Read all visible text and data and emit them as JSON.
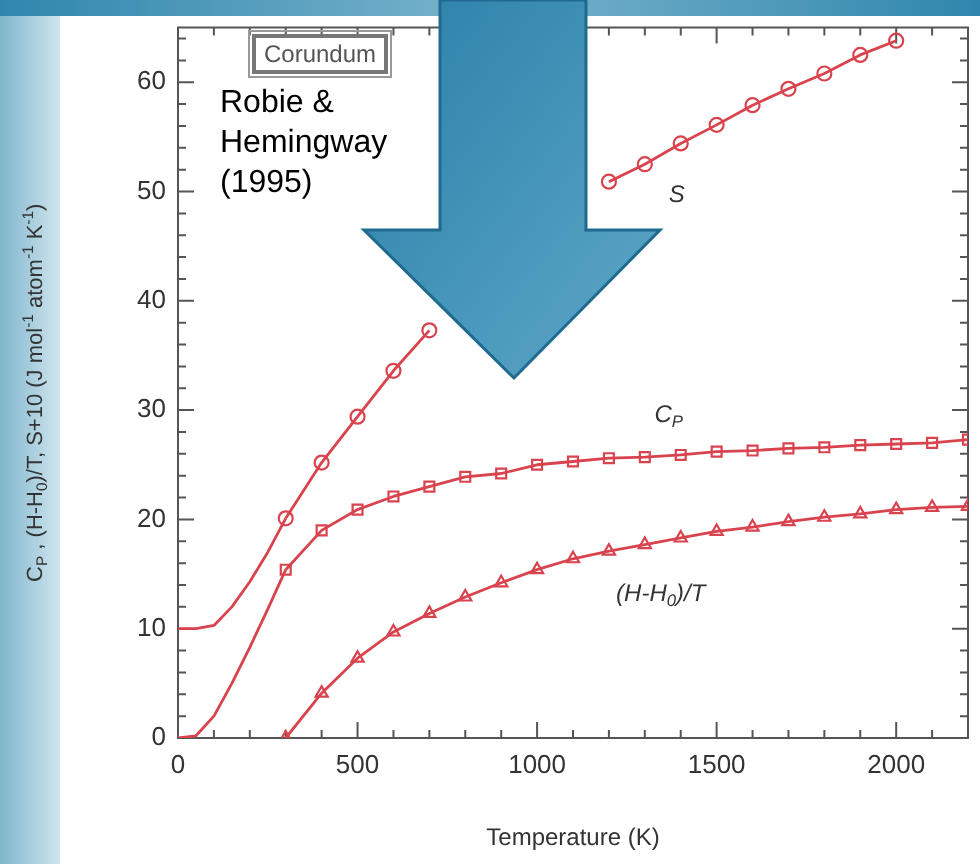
{
  "chart_data": {
    "type": "line",
    "xlabel": "Temperature (K)",
    "ylabel": "C$_{P}$ , (H-H$_{0}$)/T, S+10 (J mol$^{-1}$ atom$^{-1}$ K$^{-1}$)",
    "annotations": [
      "Corundum",
      "Robie & Hemingway (1995)"
    ],
    "xlim": [
      0,
      2200
    ],
    "xticks": [
      0,
      {
        "value": 100,
        "label": null
      },
      {
        "value": 200,
        "label": null
      },
      {
        "value": 300,
        "label": null
      },
      {
        "value": 400,
        "label": null
      },
      500,
      {
        "value": 600,
        "label": null
      },
      {
        "value": 700,
        "label": null
      },
      {
        "value": 800,
        "label": null
      },
      {
        "value": 900,
        "label": null
      },
      1000,
      {
        "value": 1100,
        "label": null
      },
      {
        "value": 1200,
        "label": null
      },
      {
        "value": 1300,
        "label": null
      },
      {
        "value": 1400,
        "label": null
      },
      1500,
      {
        "value": 1600,
        "label": null
      },
      {
        "value": 1700,
        "label": null
      },
      {
        "value": 1800,
        "label": null
      },
      {
        "value": 1900,
        "label": null
      },
      2000,
      {
        "value": 2100,
        "label": null
      },
      {
        "value": 2200,
        "label": null
      }
    ],
    "ylim": [
      0,
      65
    ],
    "yticks": [
      0,
      {
        "value": 2,
        "label": null
      },
      {
        "value": 4,
        "label": null
      },
      {
        "value": 6,
        "label": null
      },
      {
        "value": 8,
        "label": null
      },
      10,
      {
        "value": 12,
        "label": null
      },
      {
        "value": 14,
        "label": null
      },
      {
        "value": 16,
        "label": null
      },
      {
        "value": 18,
        "label": null
      },
      20,
      {
        "value": 22,
        "label": null
      },
      {
        "value": 24,
        "label": null
      },
      {
        "value": 26,
        "label": null
      },
      {
        "value": 28,
        "label": null
      },
      30,
      {
        "value": 32,
        "label": null
      },
      {
        "value": 34,
        "label": null
      },
      {
        "value": 36,
        "label": null
      },
      {
        "value": 38,
        "label": null
      },
      40,
      {
        "value": 42,
        "label": null
      },
      {
        "value": 44,
        "label": null
      },
      {
        "value": 46,
        "label": null
      },
      {
        "value": 48,
        "label": null
      },
      50,
      {
        "value": 52,
        "label": null
      },
      {
        "value": 54,
        "label": null
      },
      {
        "value": 56,
        "label": null
      },
      {
        "value": 58,
        "label": null
      },
      60,
      {
        "value": 62,
        "label": null
      },
      {
        "value": 64,
        "label": null
      }
    ],
    "grid": false,
    "legend": false,
    "line_style": "solid",
    "series": [
      {
        "name": "S",
        "color": "#d9434e",
        "marker": "circle",
        "x": [
          300,
          400,
          500,
          600,
          700,
          800,
          900,
          1000,
          1100,
          1200,
          1300,
          1400,
          1500,
          1600,
          1700,
          1800,
          1900,
          2000
        ],
        "values": [
          20.1,
          25.2,
          29.4,
          33.6,
          37.3,
          null,
          null,
          null,
          null,
          50.9,
          52.5,
          54.4,
          56.1,
          57.9,
          59.4,
          60.8,
          62.5,
          63.8
        ]
      },
      {
        "name": "C$_{P}$",
        "color": "#d9434e",
        "marker": "square",
        "x": [
          300,
          400,
          500,
          600,
          700,
          800,
          900,
          1000,
          1100,
          1200,
          1300,
          1400,
          1500,
          1600,
          1700,
          1800,
          1900,
          2000,
          2100,
          2200
        ],
        "values": [
          15.4,
          19.0,
          20.9,
          22.1,
          23.0,
          23.9,
          24.2,
          25.0,
          25.3,
          25.6,
          25.7,
          25.9,
          26.2,
          26.3,
          26.5,
          26.6,
          26.8,
          26.9,
          27.0,
          27.3
        ]
      },
      {
        "name": "(H-H$_{0}$)/T",
        "color": "#d9434e",
        "marker": "triangle",
        "x": [
          300,
          400,
          500,
          600,
          700,
          800,
          900,
          1000,
          1100,
          1200,
          1300,
          1400,
          1500,
          1600,
          1700,
          1800,
          1900,
          2000,
          2100,
          2200
        ],
        "values": [
          0,
          4.1,
          7.3,
          9.7,
          11.4,
          12.9,
          14.2,
          15.4,
          16.4,
          17.1,
          17.7,
          18.3,
          18.9,
          19.3,
          19.8,
          20.2,
          20.5,
          20.9,
          21.1,
          21.2
        ]
      },
      {
        "color": "#d9434e",
        "marker": "none",
        "x": [
          0,
          50,
          100,
          150,
          200,
          250,
          300
        ],
        "values": [
          10,
          10,
          10.3,
          12,
          14.3,
          17,
          20.1
        ]
      },
      {
        "color": "#d9434e",
        "marker": "none",
        "x": [
          0,
          50,
          100,
          150,
          200,
          250,
          300
        ],
        "values": [
          0,
          0.2,
          2,
          5,
          8.3,
          11.8,
          15.4
        ]
      }
    ]
  }
}
